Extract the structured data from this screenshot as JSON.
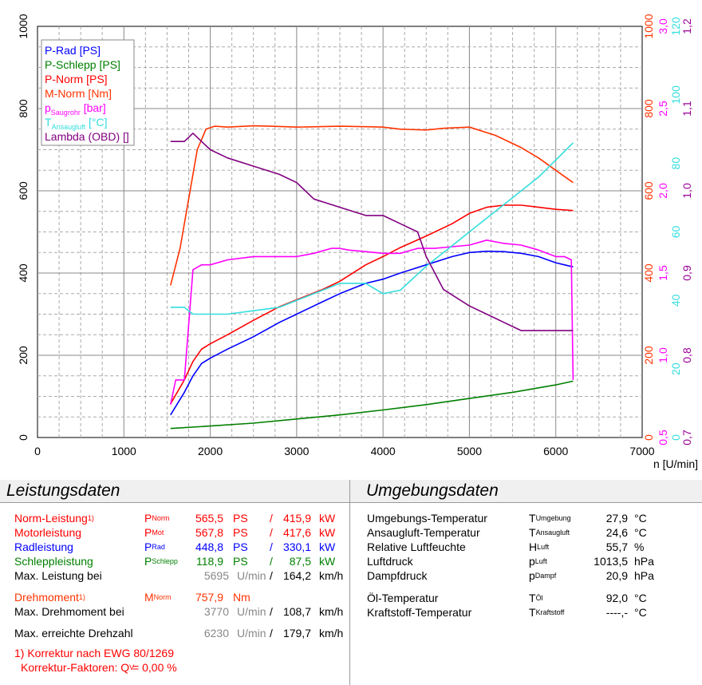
{
  "chart_data": {
    "type": "line",
    "xlabel": "n [U/min]",
    "xlim": [
      0,
      7000
    ],
    "x_ticks": [
      "0",
      "1000",
      "2000",
      "3000",
      "4000",
      "5000",
      "6000",
      "7000"
    ],
    "left_axis": {
      "ylim": [
        0,
        1000
      ],
      "ticks": [
        "0",
        "200",
        "400",
        "600",
        "800",
        "1000"
      ]
    },
    "right_axes": [
      {
        "name": "Nm",
        "color": "#ff3300",
        "ticks": [
          "0",
          "200",
          "400",
          "600",
          "800",
          "1000"
        ]
      },
      {
        "name": "bar",
        "color": "#ff00ff",
        "ticks": [
          "0,5",
          "1,0",
          "1,5",
          "2,0",
          "2,5",
          "3,0"
        ]
      },
      {
        "name": "°C",
        "color": "#33dddd",
        "ticks": [
          "0",
          "20",
          "40",
          "60",
          "80",
          "100",
          "120"
        ]
      },
      {
        "name": "Lambda",
        "color": "#990099",
        "ticks": [
          "0,7",
          "0,8",
          "0,9",
          "1,0",
          "1,1",
          "1,2"
        ]
      }
    ],
    "grid": true,
    "legend_position": "top-left",
    "legend": [
      {
        "label": "P-Rad [PS]",
        "color": "#0000ff"
      },
      {
        "label": "P-Schlepp [PS]",
        "color": "#008000"
      },
      {
        "label": "P-Norm [PS]",
        "color": "#ff0000"
      },
      {
        "label": "M-Norm [Nm]",
        "color": "#ff3300"
      },
      {
        "label_main": "p",
        "label_sub": "Saugrohr",
        "label_tail": " [bar]",
        "color": "#ff00ff"
      },
      {
        "label_main": "T",
        "label_sub": "Ansaugluft",
        "label_tail": " [°C]",
        "color": "#33dddd"
      },
      {
        "label": "Lambda (OBD) []",
        "color": "#800080"
      }
    ],
    "series": [
      {
        "name": "P-Rad [PS]",
        "color": "#0000ff",
        "axis": "left",
        "x": [
          1540,
          1700,
          1800,
          1900,
          2000,
          2200,
          2500,
          2800,
          3000,
          3300,
          3500,
          3800,
          4000,
          4200,
          4500,
          4800,
          5000,
          5200,
          5400,
          5600,
          5800,
          6000,
          6100,
          6200
        ],
        "y": [
          55,
          110,
          150,
          180,
          193,
          215,
          245,
          280,
          300,
          330,
          350,
          375,
          385,
          400,
          420,
          440,
          450,
          453,
          452,
          448,
          440,
          425,
          420,
          415
        ]
      },
      {
        "name": "P-Schlepp [PS]",
        "color": "#008000",
        "axis": "left",
        "x": [
          1540,
          2000,
          2500,
          3000,
          3500,
          4000,
          4500,
          5000,
          5500,
          6000,
          6200
        ],
        "y": [
          22,
          28,
          35,
          45,
          55,
          67,
          80,
          95,
          110,
          128,
          137
        ]
      },
      {
        "name": "P-Norm [PS]",
        "color": "#ff0000",
        "axis": "left",
        "x": [
          1540,
          1700,
          1800,
          1900,
          2000,
          2200,
          2500,
          2800,
          3000,
          3300,
          3500,
          3800,
          4000,
          4200,
          4500,
          4800,
          5000,
          5200,
          5400,
          5600,
          5800,
          6000,
          6200
        ],
        "y": [
          82,
          140,
          185,
          215,
          228,
          250,
          285,
          318,
          335,
          360,
          380,
          420,
          440,
          462,
          490,
          520,
          545,
          560,
          565,
          565,
          560,
          555,
          552
        ]
      },
      {
        "name": "M-Norm [Nm]",
        "color": "#ff3300",
        "axis": "Nm",
        "x": [
          1540,
          1650,
          1750,
          1850,
          1950,
          2050,
          2200,
          2500,
          2700,
          3000,
          3500,
          3800,
          4000,
          4200,
          4500,
          4700,
          5000,
          5300,
          5600,
          5800,
          6000,
          6200
        ],
        "y": [
          370,
          460,
          580,
          700,
          750,
          757,
          755,
          758,
          757,
          755,
          757,
          756,
          755,
          750,
          748,
          752,
          755,
          735,
          705,
          680,
          650,
          620
        ]
      },
      {
        "name": "p Saugrohr [bar]",
        "color": "#ff00ff",
        "axis": "bar",
        "x": [
          1540,
          1560,
          1600,
          1700,
          1800,
          1900,
          2000,
          2200,
          2500,
          2800,
          3000,
          3200,
          3400,
          3500,
          3600,
          3800,
          4000,
          4200,
          4400,
          4600,
          4800,
          5000,
          5200,
          5400,
          5600,
          5800,
          6000,
          6100,
          6180,
          6200
        ],
        "y": [
          0.7,
          0.75,
          0.85,
          0.85,
          1.52,
          1.55,
          1.55,
          1.58,
          1.6,
          1.6,
          1.6,
          1.62,
          1.65,
          1.65,
          1.64,
          1.63,
          1.62,
          1.62,
          1.65,
          1.65,
          1.66,
          1.67,
          1.7,
          1.68,
          1.67,
          1.64,
          1.6,
          1.6,
          1.58,
          0.85
        ]
      },
      {
        "name": "T Ansaugluft [°C]",
        "color": "#33dddd",
        "axis": "°C",
        "x": [
          1540,
          1700,
          1800,
          2000,
          2200,
          2500,
          2800,
          3000,
          3200,
          3400,
          3500,
          3800,
          4000,
          4200,
          4500,
          4800,
          5000,
          5200,
          5400,
          5600,
          5800,
          6000,
          6200
        ],
        "y": [
          38,
          38,
          36,
          36,
          36,
          37,
          38,
          40,
          42,
          44,
          45,
          45,
          42,
          43,
          50,
          56,
          60,
          64,
          68,
          72,
          76,
          81,
          86
        ]
      },
      {
        "name": "Lambda (OBD) []",
        "color": "#800080",
        "axis": "Lambda",
        "x": [
          1540,
          1700,
          1800,
          1900,
          2000,
          2200,
          2500,
          2800,
          3000,
          3200,
          3500,
          3800,
          4000,
          4200,
          4400,
          4500,
          4700,
          5000,
          5200,
          5400,
          5600,
          5800,
          6000,
          6200
        ],
        "y": [
          1.06,
          1.06,
          1.07,
          1.06,
          1.05,
          1.04,
          1.03,
          1.02,
          1.01,
          0.99,
          0.98,
          0.97,
          0.97,
          0.96,
          0.95,
          0.92,
          0.88,
          0.86,
          0.85,
          0.84,
          0.83,
          0.83,
          0.83,
          0.83
        ]
      }
    ]
  },
  "leistungsdaten": {
    "title": "Leistungsdaten",
    "rows": [
      {
        "label": "Norm-Leistung",
        "sup": "1)",
        "sym": "P",
        "sub": "Norm",
        "v1": "565,5",
        "u1": "PS",
        "sep": "/",
        "v2": "415,9",
        "u2": "kW",
        "color": "#ff0000"
      },
      {
        "label": "Motorleistung",
        "sup": "",
        "sym": "P",
        "sub": "Mot",
        "v1": "567,8",
        "u1": "PS",
        "sep": "/",
        "v2": "417,6",
        "u2": "kW",
        "color": "#ff0000"
      },
      {
        "label": "Radleistung",
        "sup": "",
        "sym": "P",
        "sub": "Rad",
        "v1": "448,8",
        "u1": "PS",
        "sep": "/",
        "v2": "330,1",
        "u2": "kW",
        "color": "#0000ff"
      },
      {
        "label": "Schleppleistung",
        "sup": "",
        "sym": "P",
        "sub": "Schlepp",
        "v1": "118,9",
        "u1": "PS",
        "sep": "/",
        "v2": "87,5",
        "u2": "kW",
        "color": "#008000"
      }
    ],
    "max_power": {
      "label": "Max. Leistung bei",
      "rpm": "5695",
      "rpm_unit": "U/min",
      "sep": "/",
      "speed": "164,2",
      "speed_unit": "km/h"
    },
    "torque": {
      "label": "Drehmoment",
      "sup": "1)",
      "sym": "M",
      "sub": "Norm",
      "value": "757,9",
      "unit": "Nm",
      "color": "#ff3300"
    },
    "max_torque": {
      "label": "Max. Drehmoment bei",
      "rpm": "3770",
      "rpm_unit": "U/min",
      "sep": "/",
      "speed": "108,7",
      "speed_unit": "km/h"
    },
    "max_rpm": {
      "label": "Max. erreichte Drehzahl",
      "rpm": "6230",
      "rpm_unit": "U/min",
      "sep": "/",
      "speed": "179,7",
      "speed_unit": "km/h"
    },
    "footnote_line1": "1) Korrektur nach EWG 80/1269",
    "footnote_line2_pre": "Korrektur-Faktoren: Q",
    "footnote_line2_sub": "V",
    "footnote_line2_post": " =   0,00 %"
  },
  "umgebungsdaten": {
    "title": "Umgebungsdaten",
    "rows": [
      {
        "label": "Umgebungs-Temperatur",
        "sym": "T",
        "sub": "Umgebung",
        "value": "27,9",
        "unit": "°C"
      },
      {
        "label": "Ansaugluft-Temperatur",
        "sym": "T",
        "sub": "Ansaugluft",
        "value": "24,6",
        "unit": "°C"
      },
      {
        "label": "Relative Luftfeuchte",
        "sym": "H",
        "sub": "Luft",
        "value": "55,7",
        "unit": "%"
      },
      {
        "label": "Luftdruck",
        "sym": "p",
        "sub": "Luft",
        "value": "1013,5",
        "unit": "hPa"
      },
      {
        "label": "Dampfdruck",
        "sym": "p",
        "sub": "Dampf",
        "value": "20,9",
        "unit": "hPa"
      },
      {
        "label": "Öl-Temperatur",
        "sym": "T",
        "sub": "Öl",
        "value": "92,0",
        "unit": "°C"
      },
      {
        "label": "Kraftstoff-Temperatur",
        "sym": "T",
        "sub": "Kraftstoff",
        "value": "----,-",
        "unit": "°C"
      }
    ]
  }
}
